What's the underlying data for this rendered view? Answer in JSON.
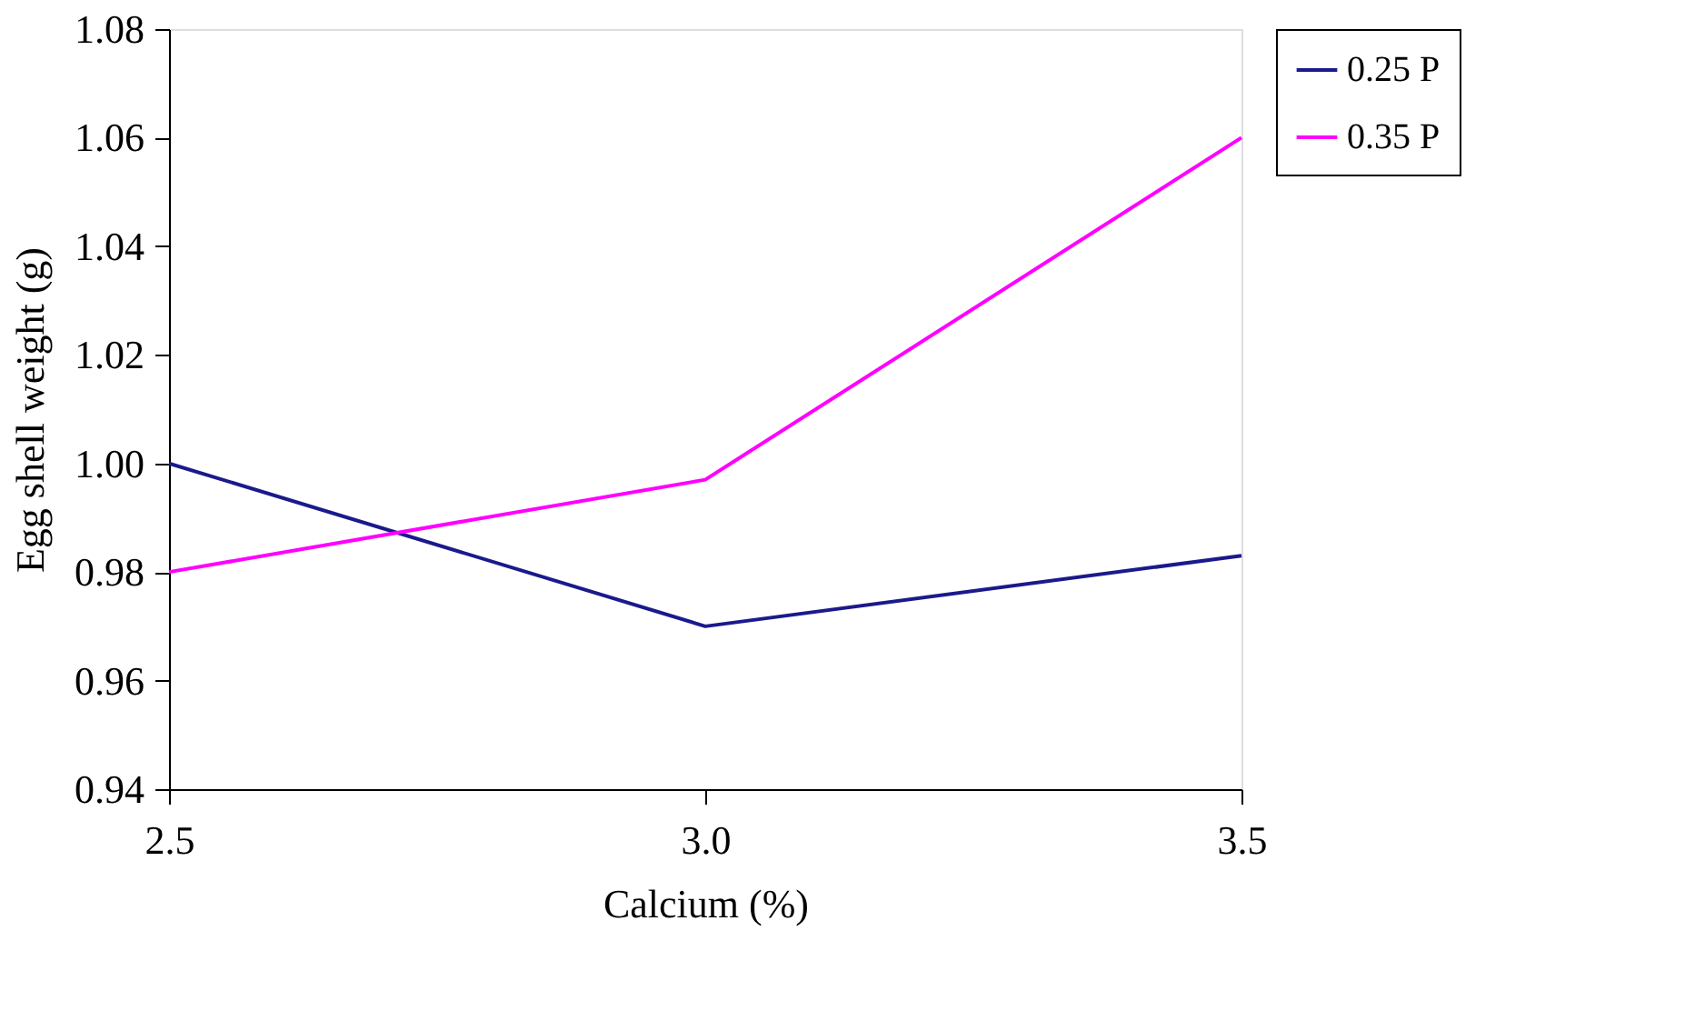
{
  "chart_data": {
    "type": "line",
    "xlabel": "Calcium (%)",
    "ylabel": "Egg shell weight (g)",
    "categories": [
      "2.5",
      "3.0",
      "3.5"
    ],
    "series": [
      {
        "name": "0.25 P",
        "color": "#1a1a8c",
        "values": [
          1.0,
          0.97,
          0.983
        ]
      },
      {
        "name": "0.35 P",
        "color": "#ff00ff",
        "values": [
          0.98,
          0.997,
          1.06
        ]
      }
    ],
    "ylim": [
      0.94,
      1.08
    ],
    "yticks": [
      0.94,
      0.96,
      0.98,
      {
        "value": 1.0,
        "label": "1.00"
      },
      1.02,
      1.04,
      1.06,
      1.08
    ],
    "grid": false,
    "legend": "right",
    "marker": "none",
    "line_style": "solid"
  }
}
